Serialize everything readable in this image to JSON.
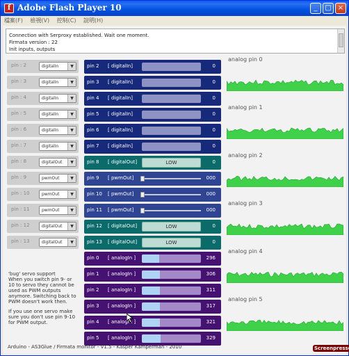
{
  "window": {
    "title": "Adobe Flash Player 10"
  },
  "menubar": [
    "檔案(F)",
    "檢視(V)",
    "控制(C)",
    "說明(H)"
  ],
  "console": {
    "lines": [
      "Connection with Serproxy established. Wait one moment.",
      "Firmata version : 22",
      "Init inputs, outputs"
    ]
  },
  "config_rows": [
    {
      "label": "pin : 2",
      "mode": "digitalIn"
    },
    {
      "label": "pin : 3",
      "mode": "digitalIn"
    },
    {
      "label": "pin : 4",
      "mode": "digitalIn"
    },
    {
      "label": "pin : 5",
      "mode": "digitalIn"
    },
    {
      "label": "pin : 6",
      "mode": "digitalIn"
    },
    {
      "label": "pin : 7",
      "mode": "digitalIn"
    },
    {
      "label": "pin : 8",
      "mode": "digitalOut"
    },
    {
      "label": "pin : 9",
      "mode": "pwmOut"
    },
    {
      "label": "pin : 10",
      "mode": "pwmOut"
    },
    {
      "label": "pin : 11",
      "mode": "pwmOut"
    },
    {
      "label": "pin : 12",
      "mode": "digitalOut"
    },
    {
      "label": "pin : 13",
      "mode": "digitalOut"
    }
  ],
  "pins": [
    {
      "name": "pin 2",
      "mode": "[ digitalIn]",
      "type": "digitalIn",
      "value": "0"
    },
    {
      "name": "pin 3",
      "mode": "[ digitalIn]",
      "type": "digitalIn",
      "value": "0"
    },
    {
      "name": "pin 4",
      "mode": "[ digitalIn]",
      "type": "digitalIn",
      "value": "0"
    },
    {
      "name": "pin 5",
      "mode": "[ digitalIn]",
      "type": "digitalIn",
      "value": "0"
    },
    {
      "name": "pin 6",
      "mode": "[ digitalIn]",
      "type": "digitalIn",
      "value": "0"
    },
    {
      "name": "pin 7",
      "mode": "[ digitalIn]",
      "type": "digitalIn",
      "value": "0"
    },
    {
      "name": "pin 8",
      "mode": "[ digitalOut]",
      "type": "digitalOut",
      "button": "LOW",
      "value": "0"
    },
    {
      "name": "pin 9",
      "mode": "[ pwmOut]",
      "type": "pwmOut",
      "value": "000"
    },
    {
      "name": "pin 10",
      "mode": "[ pwmOut]",
      "type": "pwmOut",
      "value": "000"
    },
    {
      "name": "pin 11",
      "mode": "[ pwmOut]",
      "type": "pwmOut",
      "value": "000"
    },
    {
      "name": "pin 12",
      "mode": "[ digitalOut]",
      "type": "digitalOut",
      "button": "LOW",
      "value": "0"
    },
    {
      "name": "pin 13",
      "mode": "[ digitalOut]",
      "type": "digitalOut",
      "button": "LOW",
      "value": "0"
    },
    {
      "name": "pin 0",
      "mode": "[ analogIn ]",
      "type": "analogIn",
      "value": "296",
      "level": 0.29
    },
    {
      "name": "pin 1",
      "mode": "[ analogIn ]",
      "type": "analogIn",
      "value": "306",
      "level": 0.3
    },
    {
      "name": "pin 2",
      "mode": "[ analogIn ]",
      "type": "analogIn",
      "value": "311",
      "level": 0.3
    },
    {
      "name": "pin 3",
      "mode": "[ analogIn ]",
      "type": "analogIn",
      "value": "317",
      "level": 0.31
    },
    {
      "name": "pin 4",
      "mode": "[ analogIn ]",
      "type": "analogIn",
      "value": "321",
      "level": 0.31
    },
    {
      "name": "pin 5",
      "mode": "[ analogIn ]",
      "type": "analogIn",
      "value": "329",
      "level": 0.32
    }
  ],
  "analog_graphs": [
    "analog pin 0",
    "analog pin 1",
    "analog pin 2",
    "analog pin 3",
    "analog pin 4",
    "analog pin 5"
  ],
  "side_note": {
    "p1": "'bug' servo support\nWhen you switch pin 9- or 10 to servo they cannot be used as PWM outputs anymore. Switching back to PWM doesn't work then.",
    "p2": "If you use one servo make sure you don't use pin 9-10 for PWM output."
  },
  "footer": "Arduino - AS3Glue / Firmata monitor - V1.5 - Kasper Kamperman - 2010",
  "watermark": "Screenpresso",
  "colors": {
    "graph_fill": "#3fd14a",
    "graph_line": "#1ea62a"
  }
}
